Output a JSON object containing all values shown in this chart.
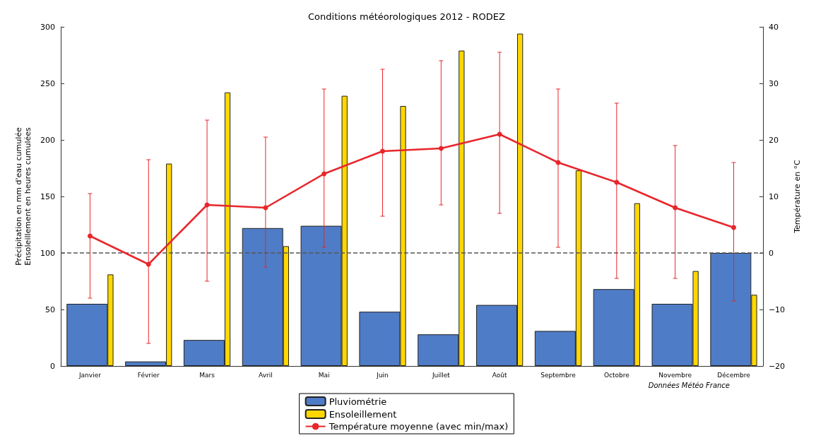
{
  "chart_data": {
    "type": "bar",
    "title": "Conditions météorologiques 2012 - RODEZ",
    "ylabel": "Précipitation en mm d'eau cumulée\nEnsoleillement en heures cumulées",
    "y2label": "Température en °C",
    "categories": [
      "Janvier",
      "Février",
      "Mars",
      "Avril",
      "Mai",
      "Juin",
      "Juillet",
      "Août",
      "Septembre",
      "Octobre",
      "Novembre",
      "Décembre"
    ],
    "series": [
      {
        "name": "Pluviométrie",
        "color": "#4f7cc6",
        "values": [
          55,
          4,
          23,
          122,
          124,
          48,
          28,
          54,
          31,
          68,
          55,
          100
        ]
      },
      {
        "name": "Ensoleillement",
        "color": "#ffd700",
        "values": [
          81,
          179,
          242,
          106,
          239,
          230,
          279,
          294,
          173,
          144,
          84,
          63
        ]
      },
      {
        "name": "Température moyenne (avec min/max)",
        "type": "line",
        "axis": "y2",
        "color": "#e8262b",
        "marker": "circle",
        "values": [
          3,
          -2,
          8.5,
          8,
          14,
          18,
          18.5,
          21,
          16,
          12.5,
          8,
          4.5
        ],
        "errors": [
          [
            -8,
            10.5
          ],
          [
            -16,
            16.5
          ],
          [
            -5,
            23.5
          ],
          [
            -2.5,
            20.5
          ],
          [
            1,
            29
          ],
          [
            6.5,
            32.5
          ],
          [
            8.5,
            34
          ],
          [
            7,
            35.5
          ],
          [
            1,
            29
          ],
          [
            -4.5,
            26.5
          ],
          [
            -4.5,
            19
          ],
          [
            -8.5,
            16
          ]
        ]
      }
    ],
    "ylim": [
      0,
      300
    ],
    "yticks": [
      0,
      50,
      100,
      150,
      200,
      250,
      300
    ],
    "y2lim": [
      -20,
      40
    ],
    "y2ticks": [
      -20,
      -10,
      0,
      10,
      20,
      30,
      40
    ],
    "ref_lines": [
      {
        "axis": "y",
        "value": 100,
        "color": "#555555",
        "line_style": "dashed"
      }
    ],
    "grid": false,
    "legend": "bottom",
    "annotations": [
      "Données Météo France"
    ]
  }
}
